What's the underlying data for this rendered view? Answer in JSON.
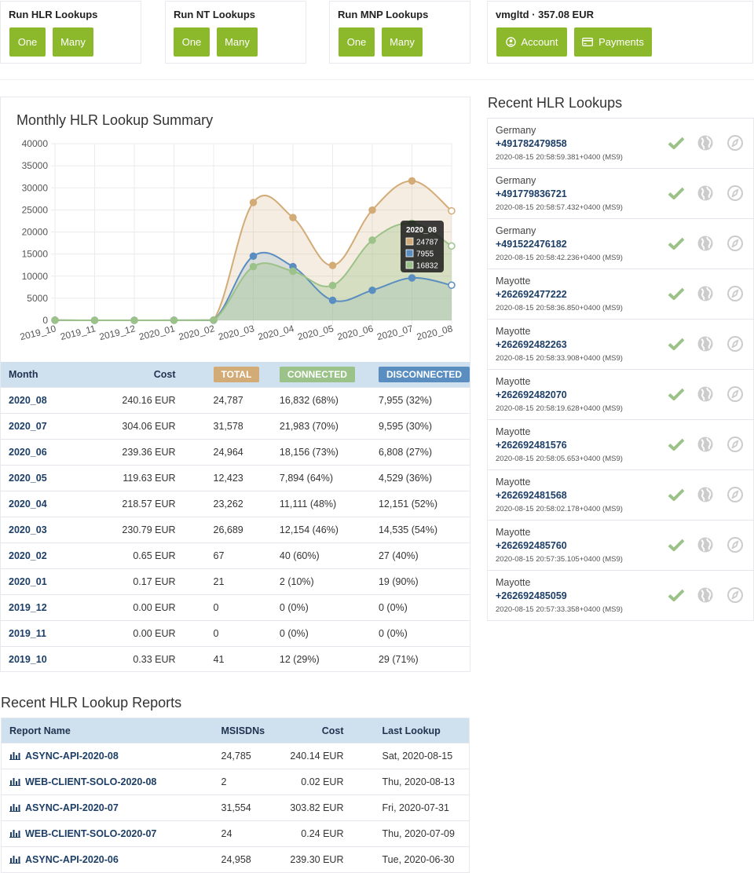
{
  "run_cards": [
    {
      "title": "Run HLR Lookups",
      "one": "One",
      "many": "Many"
    },
    {
      "title": "Run NT Lookups",
      "one": "One",
      "many": "Many"
    },
    {
      "title": "Run MNP Lookups",
      "one": "One",
      "many": "Many"
    }
  ],
  "account_card": {
    "title": "vmgltd · 357.08 EUR",
    "account_label": "Account",
    "payments_label": "Payments"
  },
  "summary": {
    "title": "Monthly HLR Lookup Summary",
    "headers": {
      "month": "Month",
      "cost": "Cost",
      "total": "TOTAL",
      "connected": "CONNECTED",
      "disconnected": "DISCONNECTED"
    },
    "rows": [
      {
        "month": "2020_08",
        "cost": "240.16 EUR",
        "total": "24,787",
        "connected": "16,832 (68%)",
        "disconnected": "7,955 (32%)"
      },
      {
        "month": "2020_07",
        "cost": "304.06 EUR",
        "total": "31,578",
        "connected": "21,983 (70%)",
        "disconnected": "9,595 (30%)"
      },
      {
        "month": "2020_06",
        "cost": "239.36 EUR",
        "total": "24,964",
        "connected": "18,156 (73%)",
        "disconnected": "6,808 (27%)"
      },
      {
        "month": "2020_05",
        "cost": "119.63 EUR",
        "total": "12,423",
        "connected": "7,894 (64%)",
        "disconnected": "4,529 (36%)"
      },
      {
        "month": "2020_04",
        "cost": "218.57 EUR",
        "total": "23,262",
        "connected": "11,111 (48%)",
        "disconnected": "12,151 (52%)"
      },
      {
        "month": "2020_03",
        "cost": "230.79 EUR",
        "total": "26,689",
        "connected": "12,154 (46%)",
        "disconnected": "14,535 (54%)"
      },
      {
        "month": "2020_02",
        "cost": "0.65 EUR",
        "total": "67",
        "connected": "40 (60%)",
        "disconnected": "27 (40%)"
      },
      {
        "month": "2020_01",
        "cost": "0.17 EUR",
        "total": "21",
        "connected": "2 (10%)",
        "disconnected": "19 (90%)"
      },
      {
        "month": "2019_12",
        "cost": "0.00 EUR",
        "total": "0",
        "connected": "0 (0%)",
        "disconnected": "0 (0%)"
      },
      {
        "month": "2019_11",
        "cost": "0.00 EUR",
        "total": "0",
        "connected": "0 (0%)",
        "disconnected": "0 (0%)"
      },
      {
        "month": "2019_10",
        "cost": "0.33 EUR",
        "total": "41",
        "connected": "12 (29%)",
        "disconnected": "29 (71%)"
      }
    ]
  },
  "chart_data": {
    "type": "line",
    "categories": [
      "2019_10",
      "2019_11",
      "2019_12",
      "2020_01",
      "2020_02",
      "2020_03",
      "2020_04",
      "2020_05",
      "2020_06",
      "2020_07",
      "2020_08"
    ],
    "series": [
      {
        "values": [
          41,
          0,
          0,
          21,
          67,
          26689,
          23262,
          12423,
          24964,
          31578,
          24787
        ],
        "color": "#d3ab77"
      },
      {
        "values": [
          29,
          0,
          0,
          19,
          27,
          14535,
          12151,
          4529,
          6808,
          9595,
          7955
        ],
        "color": "#5a8ec0"
      },
      {
        "values": [
          12,
          0,
          0,
          2,
          40,
          12154,
          11111,
          7894,
          18156,
          21983,
          16832
        ],
        "color": "#9bc288"
      }
    ],
    "yticks": [
      0,
      5000,
      10000,
      15000,
      20000,
      25000,
      30000,
      35000,
      40000
    ],
    "ylim": [
      0,
      40000
    ],
    "tooltip": {
      "title": "2020_08",
      "values": [
        "24787",
        "7955",
        "16832"
      ]
    }
  },
  "recent_lookups": {
    "title": "Recent HLR Lookups",
    "items": [
      {
        "country": "Germany",
        "number": "+491782479858",
        "ts": "2020-08-15 20:58:59.381+0400 (MS9)"
      },
      {
        "country": "Germany",
        "number": "+491779836721",
        "ts": "2020-08-15 20:58:57.432+0400 (MS9)"
      },
      {
        "country": "Germany",
        "number": "+491522476182",
        "ts": "2020-08-15 20:58:42.236+0400 (MS9)"
      },
      {
        "country": "Mayotte",
        "number": "+262692477222",
        "ts": "2020-08-15 20:58:36.850+0400 (MS9)"
      },
      {
        "country": "Mayotte",
        "number": "+262692482263",
        "ts": "2020-08-15 20:58:33.908+0400 (MS9)"
      },
      {
        "country": "Mayotte",
        "number": "+262692482070",
        "ts": "2020-08-15 20:58:19.628+0400 (MS9)"
      },
      {
        "country": "Mayotte",
        "number": "+262692481576",
        "ts": "2020-08-15 20:58:05.653+0400 (MS9)"
      },
      {
        "country": "Mayotte",
        "number": "+262692481568",
        "ts": "2020-08-15 20:58:02.178+0400 (MS9)"
      },
      {
        "country": "Mayotte",
        "number": "+262692485760",
        "ts": "2020-08-15 20:57:35.105+0400 (MS9)"
      },
      {
        "country": "Mayotte",
        "number": "+262692485059",
        "ts": "2020-08-15 20:57:33.358+0400 (MS9)"
      }
    ]
  },
  "reports": {
    "title": "Recent HLR Lookup Reports",
    "headers": {
      "name": "Report Name",
      "msisdns": "MSISDNs",
      "cost": "Cost",
      "last": "Last Lookup"
    },
    "rows": [
      {
        "name": "ASYNC-API-2020-08",
        "msisdns": "24,785",
        "cost": "240.14 EUR",
        "last": "Sat, 2020-08-15"
      },
      {
        "name": "WEB-CLIENT-SOLO-2020-08",
        "msisdns": "2",
        "cost": "0.02 EUR",
        "last": "Thu, 2020-08-13"
      },
      {
        "name": "ASYNC-API-2020-07",
        "msisdns": "31,554",
        "cost": "303.82 EUR",
        "last": "Fri, 2020-07-31"
      },
      {
        "name": "WEB-CLIENT-SOLO-2020-07",
        "msisdns": "24",
        "cost": "0.24 EUR",
        "last": "Thu, 2020-07-09"
      },
      {
        "name": "ASYNC-API-2020-06",
        "msisdns": "24,958",
        "cost": "239.30 EUR",
        "last": "Tue, 2020-06-30"
      }
    ]
  },
  "icons": {
    "status": "check-icon",
    "map": "globe-icon",
    "compass": "compass-icon",
    "report": "bar-chart-icon",
    "account": "user-circle-icon",
    "payments": "credit-card-icon"
  },
  "colors": {
    "accent": "#8cb82b",
    "total": "#d3ab77",
    "connected": "#9bc288",
    "disconnected": "#5a8ec0",
    "header": "#cfe0ef"
  }
}
